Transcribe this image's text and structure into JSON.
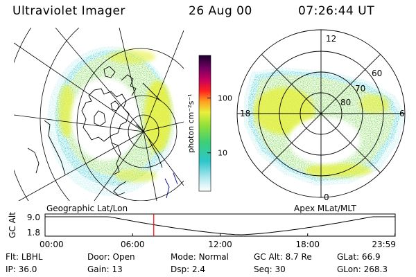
{
  "header": {
    "instrument": "Ultraviolet Imager",
    "date": "26 Aug 00",
    "time": "07:26:44 UT"
  },
  "colorbar": {
    "unit_label": "photon cm⁻²s⁻¹",
    "tick_labels": [
      "100",
      "10"
    ],
    "tick_values": [
      100,
      10
    ],
    "scale": "log",
    "range": [
      2,
      600
    ]
  },
  "polar_plot": {
    "mlt_labels": [
      "12",
      "18",
      "6",
      "0"
    ],
    "mlat_labels": [
      "60",
      "70",
      "80"
    ]
  },
  "map_labels": {
    "left": "Geographic Lat/Lon",
    "right": "Apex MLat/MLT"
  },
  "alt_plot": {
    "ylabel": "GC Alt",
    "y_ticks": [
      "9.0",
      "1.8"
    ],
    "x_ticks": [
      "00:00",
      "06:00",
      "12:00",
      "18:00",
      "23:59"
    ],
    "current_time_hours": 7.45
  },
  "footer": {
    "row1": [
      {
        "label": "Flt:",
        "value": "LBHL"
      },
      {
        "label": "Door:",
        "value": "Open"
      },
      {
        "label": "Mode:",
        "value": "Normal"
      },
      {
        "label": "GC Alt:",
        "value": "8.7 Re"
      },
      {
        "label": "GLat:",
        "value": "66.9"
      }
    ],
    "row2": [
      {
        "label": "IP:",
        "value": "36.0"
      },
      {
        "label": "Gain:",
        "value": "13"
      },
      {
        "label": "Dsp:",
        "value": "2.4"
      },
      {
        "label": "Seq:",
        "value": "30"
      },
      {
        "label": "GLon:",
        "value": "268.3"
      }
    ]
  },
  "colors": {
    "aurora_low": "#b4ecf0",
    "aurora_mid": "#2cc8cc",
    "aurora_green": "#6ed43c",
    "aurora_yellow": "#e6f03c",
    "time_marker": "#ff0000",
    "coastline": "#000080"
  }
}
